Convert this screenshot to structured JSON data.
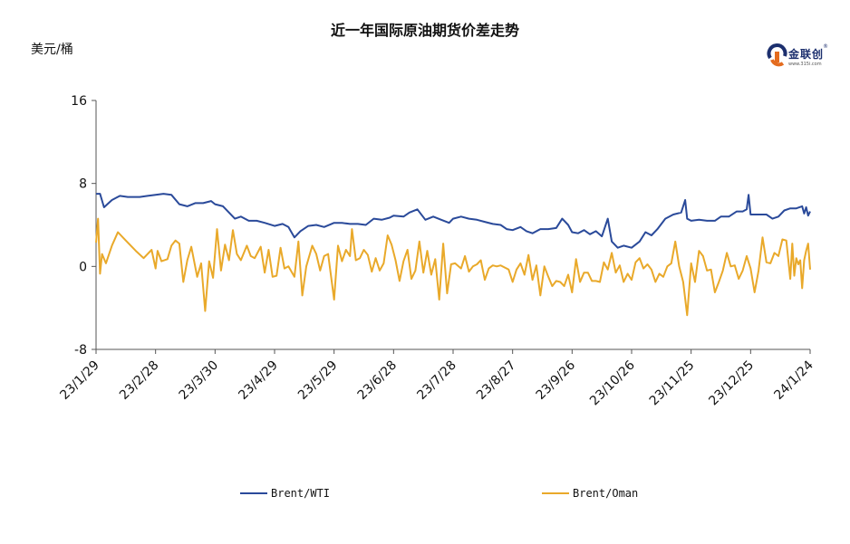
{
  "chart_data": {
    "type": "line",
    "title": "近一年国际原油期货价差走势",
    "unit_label": "美元/桶",
    "ylim": [
      -8,
      16
    ],
    "yticks": [
      "16",
      "8",
      "0",
      "-8"
    ],
    "x_tick_labels": [
      "23/1/29",
      "23/2/28",
      "23/3/30",
      "23/4/29",
      "23/5/29",
      "23/6/28",
      "23/7/28",
      "23/8/27",
      "23/9/26",
      "23/10/26",
      "23/11/25",
      "23/12/25",
      "24/1/24"
    ],
    "x_start": "23/1/29",
    "x_end": "24/1/24",
    "grid": false,
    "legend_position": "bottom",
    "series": [
      {
        "name": "Brent/WTI",
        "color": "#2a4a9a",
        "values": [
          [
            "23/1/29",
            7.0
          ],
          [
            "23/1/31",
            7.0
          ],
          [
            "23/2/2",
            5.7
          ],
          [
            "23/2/6",
            6.4
          ],
          [
            "23/2/10",
            6.8
          ],
          [
            "23/2/14",
            6.7
          ],
          [
            "23/2/20",
            6.7
          ],
          [
            "23/2/24",
            6.8
          ],
          [
            "23/2/28",
            6.9
          ],
          [
            "23/3/4",
            7.0
          ],
          [
            "23/3/8",
            6.9
          ],
          [
            "23/3/12",
            6.0
          ],
          [
            "23/3/16",
            5.8
          ],
          [
            "23/3/20",
            6.1
          ],
          [
            "23/3/24",
            6.1
          ],
          [
            "23/3/28",
            6.3
          ],
          [
            "23/3/30",
            6.0
          ],
          [
            "23/4/3",
            5.8
          ],
          [
            "23/4/6",
            5.2
          ],
          [
            "23/4/9",
            4.6
          ],
          [
            "23/4/12",
            4.8
          ],
          [
            "23/4/16",
            4.4
          ],
          [
            "23/4/20",
            4.4
          ],
          [
            "23/4/24",
            4.2
          ],
          [
            "23/4/29",
            3.9
          ],
          [
            "23/5/3",
            4.1
          ],
          [
            "23/5/6",
            3.8
          ],
          [
            "23/5/9",
            2.8
          ],
          [
            "23/5/12",
            3.4
          ],
          [
            "23/5/16",
            3.9
          ],
          [
            "23/5/20",
            4.0
          ],
          [
            "23/5/24",
            3.8
          ],
          [
            "23/5/29",
            4.2
          ],
          [
            "23/6/2",
            4.2
          ],
          [
            "23/6/6",
            4.1
          ],
          [
            "23/6/10",
            4.1
          ],
          [
            "23/6/14",
            4.0
          ],
          [
            "23/6/18",
            4.6
          ],
          [
            "23/6/22",
            4.5
          ],
          [
            "23/6/26",
            4.7
          ],
          [
            "23/6/28",
            4.9
          ],
          [
            "23/7/3",
            4.8
          ],
          [
            "23/7/6",
            5.2
          ],
          [
            "23/7/10",
            5.5
          ],
          [
            "23/7/14",
            4.5
          ],
          [
            "23/7/18",
            4.8
          ],
          [
            "23/7/22",
            4.5
          ],
          [
            "23/7/26",
            4.2
          ],
          [
            "23/7/28",
            4.6
          ],
          [
            "23/8/1",
            4.8
          ],
          [
            "23/8/5",
            4.6
          ],
          [
            "23/8/9",
            4.5
          ],
          [
            "23/8/13",
            4.3
          ],
          [
            "23/8/17",
            4.1
          ],
          [
            "23/8/21",
            4.0
          ],
          [
            "23/8/24",
            3.6
          ],
          [
            "23/8/27",
            3.5
          ],
          [
            "23/8/31",
            3.8
          ],
          [
            "23/9/3",
            3.4
          ],
          [
            "23/9/6",
            3.2
          ],
          [
            "23/9/10",
            3.6
          ],
          [
            "23/9/14",
            3.6
          ],
          [
            "23/9/18",
            3.7
          ],
          [
            "23/9/21",
            4.6
          ],
          [
            "23/9/24",
            4.0
          ],
          [
            "23/9/26",
            3.3
          ],
          [
            "23/9/29",
            3.2
          ],
          [
            "23/10/2",
            3.5
          ],
          [
            "23/10/5",
            3.1
          ],
          [
            "23/10/8",
            3.4
          ],
          [
            "23/10/11",
            2.9
          ],
          [
            "23/10/14",
            4.6
          ],
          [
            "23/10/16",
            2.4
          ],
          [
            "23/10/19",
            1.8
          ],
          [
            "23/10/22",
            2.0
          ],
          [
            "23/10/26",
            1.8
          ],
          [
            "23/10/30",
            2.4
          ],
          [
            "23/11/2",
            3.3
          ],
          [
            "23/11/5",
            3.0
          ],
          [
            "23/11/8",
            3.6
          ],
          [
            "23/11/12",
            4.6
          ],
          [
            "23/11/16",
            5.0
          ],
          [
            "23/11/20",
            5.2
          ],
          [
            "23/11/22",
            6.4
          ],
          [
            "23/11/23",
            4.6
          ],
          [
            "23/11/25",
            4.4
          ],
          [
            "23/11/29",
            4.5
          ],
          [
            "23/12/3",
            4.4
          ],
          [
            "23/12/7",
            4.4
          ],
          [
            "23/12/10",
            4.8
          ],
          [
            "23/12/14",
            4.8
          ],
          [
            "23/12/18",
            5.3
          ],
          [
            "23/12/21",
            5.3
          ],
          [
            "23/12/23",
            5.5
          ],
          [
            "23/12/24",
            6.9
          ],
          [
            "23/12/25",
            5.0
          ],
          [
            "23/12/29",
            5.0
          ],
          [
            "24/1/2",
            5.0
          ],
          [
            "24/1/5",
            4.6
          ],
          [
            "24/1/8",
            4.8
          ],
          [
            "24/1/11",
            5.4
          ],
          [
            "24/1/14",
            5.6
          ],
          [
            "24/1/17",
            5.6
          ],
          [
            "24/1/20",
            5.8
          ],
          [
            "24/1/21",
            5.1
          ],
          [
            "24/1/22",
            5.7
          ],
          [
            "24/1/23",
            4.9
          ],
          [
            "24/1/24",
            5.3
          ]
        ]
      },
      {
        "name": "Brent/Oman",
        "color": "#e9a92a",
        "values": [
          [
            "23/1/29",
            2.3
          ],
          [
            "23/1/30",
            4.6
          ],
          [
            "23/1/31",
            -0.7
          ],
          [
            "23/2/1",
            1.2
          ],
          [
            "23/2/3",
            0.3
          ],
          [
            "23/2/6",
            2.0
          ],
          [
            "23/2/9",
            3.3
          ],
          [
            "23/2/13",
            2.5
          ],
          [
            "23/2/18",
            1.5
          ],
          [
            "23/2/22",
            0.8
          ],
          [
            "23/2/26",
            1.6
          ],
          [
            "23/2/28",
            -0.2
          ],
          [
            "23/3/1",
            1.5
          ],
          [
            "23/3/3",
            0.5
          ],
          [
            "23/3/6",
            0.7
          ],
          [
            "23/3/8",
            2.0
          ],
          [
            "23/3/10",
            2.5
          ],
          [
            "23/3/12",
            2.2
          ],
          [
            "23/3/14",
            -1.5
          ],
          [
            "23/3/16",
            0.6
          ],
          [
            "23/3/18",
            1.9
          ],
          [
            "23/3/21",
            -1.0
          ],
          [
            "23/3/23",
            0.3
          ],
          [
            "23/3/25",
            -4.3
          ],
          [
            "23/3/27",
            0.5
          ],
          [
            "23/3/29",
            -1.1
          ],
          [
            "23/3/31",
            3.6
          ],
          [
            "23/4/2",
            -0.4
          ],
          [
            "23/4/4",
            2.1
          ],
          [
            "23/4/6",
            0.6
          ],
          [
            "23/4/8",
            3.5
          ],
          [
            "23/4/10",
            1.2
          ],
          [
            "23/4/12",
            0.6
          ],
          [
            "23/4/15",
            2.0
          ],
          [
            "23/4/17",
            1.0
          ],
          [
            "23/4/19",
            0.8
          ],
          [
            "23/4/22",
            1.9
          ],
          [
            "23/4/24",
            -0.6
          ],
          [
            "23/4/26",
            1.6
          ],
          [
            "23/4/28",
            -1.0
          ],
          [
            "23/4/30",
            -0.9
          ],
          [
            "23/5/2",
            1.8
          ],
          [
            "23/5/4",
            -0.2
          ],
          [
            "23/5/6",
            0.0
          ],
          [
            "23/5/9",
            -1.0
          ],
          [
            "23/5/11",
            2.4
          ],
          [
            "23/5/13",
            -2.8
          ],
          [
            "23/5/15",
            0.0
          ],
          [
            "23/5/18",
            2.0
          ],
          [
            "23/5/20",
            1.2
          ],
          [
            "23/5/22",
            -0.4
          ],
          [
            "23/5/24",
            1.0
          ],
          [
            "23/5/26",
            1.2
          ],
          [
            "23/5/29",
            -3.2
          ],
          [
            "23/5/31",
            2.0
          ],
          [
            "23/6/2",
            0.5
          ],
          [
            "23/6/4",
            1.6
          ],
          [
            "23/6/6",
            1.0
          ],
          [
            "23/6/7",
            3.6
          ],
          [
            "23/6/9",
            0.6
          ],
          [
            "23/6/11",
            0.8
          ],
          [
            "23/6/13",
            1.6
          ],
          [
            "23/6/15",
            1.1
          ],
          [
            "23/6/17",
            -0.5
          ],
          [
            "23/6/19",
            0.8
          ],
          [
            "23/6/21",
            -0.4
          ],
          [
            "23/6/23",
            0.3
          ],
          [
            "23/6/25",
            3.0
          ],
          [
            "23/6/27",
            2.1
          ],
          [
            "23/6/29",
            0.6
          ],
          [
            "23/7/1",
            -1.4
          ],
          [
            "23/7/3",
            0.5
          ],
          [
            "23/7/5",
            1.6
          ],
          [
            "23/7/7",
            -1.2
          ],
          [
            "23/7/9",
            -0.4
          ],
          [
            "23/7/11",
            2.4
          ],
          [
            "23/7/13",
            -0.6
          ],
          [
            "23/7/15",
            1.5
          ],
          [
            "23/7/17",
            -0.8
          ],
          [
            "23/7/19",
            0.7
          ],
          [
            "23/7/21",
            -3.2
          ],
          [
            "23/7/23",
            2.2
          ],
          [
            "23/7/25",
            -2.6
          ],
          [
            "23/7/27",
            0.2
          ],
          [
            "23/7/29",
            0.3
          ],
          [
            "23/8/1",
            -0.2
          ],
          [
            "23/8/3",
            1.0
          ],
          [
            "23/8/5",
            -0.5
          ],
          [
            "23/8/7",
            0.0
          ],
          [
            "23/8/9",
            0.2
          ],
          [
            "23/8/11",
            0.6
          ],
          [
            "23/8/13",
            -1.3
          ],
          [
            "23/8/15",
            -0.2
          ],
          [
            "23/8/17",
            0.1
          ],
          [
            "23/8/19",
            0.0
          ],
          [
            "23/8/21",
            0.1
          ],
          [
            "23/8/23",
            -0.1
          ],
          [
            "23/8/25",
            -0.3
          ],
          [
            "23/8/27",
            -1.5
          ],
          [
            "23/8/29",
            -0.3
          ],
          [
            "23/8/31",
            0.3
          ],
          [
            "23/9/2",
            -0.8
          ],
          [
            "23/9/4",
            1.1
          ],
          [
            "23/9/6",
            -1.3
          ],
          [
            "23/9/8",
            0.1
          ],
          [
            "23/9/10",
            -2.8
          ],
          [
            "23/9/12",
            0.0
          ],
          [
            "23/9/14",
            -1.0
          ],
          [
            "23/9/16",
            -1.9
          ],
          [
            "23/9/18",
            -1.4
          ],
          [
            "23/9/20",
            -1.5
          ],
          [
            "23/9/22",
            -1.9
          ],
          [
            "23/9/24",
            -0.8
          ],
          [
            "23/9/26",
            -2.5
          ],
          [
            "23/9/28",
            0.7
          ],
          [
            "23/9/30",
            -1.5
          ],
          [
            "23/10/2",
            -0.6
          ],
          [
            "23/10/4",
            -0.6
          ],
          [
            "23/10/6",
            -1.4
          ],
          [
            "23/10/8",
            -1.4
          ],
          [
            "23/10/10",
            -1.5
          ],
          [
            "23/10/12",
            0.4
          ],
          [
            "23/10/14",
            -0.3
          ],
          [
            "23/10/16",
            1.3
          ],
          [
            "23/10/18",
            -0.6
          ],
          [
            "23/10/20",
            0.1
          ],
          [
            "23/10/22",
            -1.5
          ],
          [
            "23/10/24",
            -0.7
          ],
          [
            "23/10/26",
            -1.3
          ],
          [
            "23/10/28",
            0.4
          ],
          [
            "23/10/30",
            0.8
          ],
          [
            "23/11/1",
            -0.2
          ],
          [
            "23/11/3",
            0.2
          ],
          [
            "23/11/5",
            -0.3
          ],
          [
            "23/11/7",
            -1.5
          ],
          [
            "23/11/9",
            -0.7
          ],
          [
            "23/11/11",
            -1.0
          ],
          [
            "23/11/13",
            0.0
          ],
          [
            "23/11/15",
            0.3
          ],
          [
            "23/11/17",
            2.4
          ],
          [
            "23/11/19",
            0.0
          ],
          [
            "23/11/21",
            -1.5
          ],
          [
            "23/11/23",
            -4.7
          ],
          [
            "23/11/25",
            0.3
          ],
          [
            "23/11/27",
            -1.5
          ],
          [
            "23/11/29",
            1.5
          ],
          [
            "23/12/1",
            1.0
          ],
          [
            "23/12/3",
            -0.4
          ],
          [
            "23/12/5",
            -0.3
          ],
          [
            "23/12/7",
            -2.5
          ],
          [
            "23/12/9",
            -1.5
          ],
          [
            "23/12/11",
            -0.4
          ],
          [
            "23/12/13",
            1.3
          ],
          [
            "23/12/15",
            0.0
          ],
          [
            "23/12/17",
            0.1
          ],
          [
            "23/12/19",
            -1.2
          ],
          [
            "23/12/21",
            -0.4
          ],
          [
            "23/12/23",
            1.0
          ],
          [
            "23/12/25",
            -0.2
          ],
          [
            "23/12/27",
            -2.5
          ],
          [
            "23/12/29",
            -0.4
          ],
          [
            "23/12/31",
            2.8
          ],
          [
            "24/1/2",
            0.4
          ],
          [
            "24/1/4",
            0.3
          ],
          [
            "24/1/6",
            1.3
          ],
          [
            "24/1/8",
            1.0
          ],
          [
            "24/1/10",
            2.6
          ],
          [
            "24/1/12",
            2.5
          ],
          [
            "24/1/14",
            -1.2
          ],
          [
            "24/1/15",
            2.2
          ],
          [
            "24/1/16",
            -0.9
          ],
          [
            "24/1/17",
            0.8
          ],
          [
            "24/1/18",
            0.2
          ],
          [
            "24/1/19",
            0.6
          ],
          [
            "24/1/20",
            -2.1
          ],
          [
            "24/1/21",
            0.6
          ],
          [
            "24/1/22",
            1.5
          ],
          [
            "24/1/23",
            2.2
          ],
          [
            "24/1/24",
            -0.3
          ]
        ]
      }
    ]
  },
  "logo": {
    "text": "金联创",
    "subtext": "www.315i.com",
    "reg_mark": "®"
  }
}
